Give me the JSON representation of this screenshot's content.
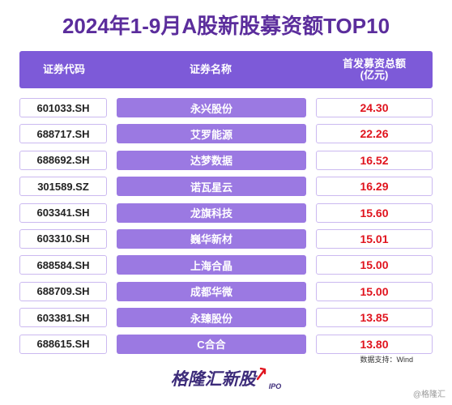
{
  "title": "2024年1-9月A股新股募资额TOP10",
  "table": {
    "headers": {
      "code": "证券代码",
      "name": "证券名称",
      "amount_line1": "首发募资总额",
      "amount_line2": "(亿元)"
    },
    "rows": [
      {
        "code": "601033.SH",
        "name": "永兴股份",
        "amount": "24.30"
      },
      {
        "code": "688717.SH",
        "name": "艾罗能源",
        "amount": "22.26"
      },
      {
        "code": "688692.SH",
        "name": "达梦数据",
        "amount": "16.52"
      },
      {
        "code": "301589.SZ",
        "name": "诺瓦星云",
        "amount": "16.29"
      },
      {
        "code": "603341.SH",
        "name": "龙旗科技",
        "amount": "15.60"
      },
      {
        "code": "603310.SH",
        "name": "巍华新材",
        "amount": "15.01"
      },
      {
        "code": "688584.SH",
        "name": "上海合晶",
        "amount": "15.00"
      },
      {
        "code": "688709.SH",
        "name": "成都华微",
        "amount": "15.00"
      },
      {
        "code": "603381.SH",
        "name": "永臻股份",
        "amount": "13.85"
      },
      {
        "code": "688615.SH",
        "name": "C合合",
        "amount": "13.80"
      }
    ]
  },
  "chart_data": {
    "type": "table",
    "title": "2024年1-9月A股新股募资额TOP10",
    "columns": [
      "证券代码",
      "证券名称",
      "首发募资总额(亿元)"
    ],
    "rows": [
      [
        "601033.SH",
        "永兴股份",
        24.3
      ],
      [
        "688717.SH",
        "艾罗能源",
        22.26
      ],
      [
        "688692.SH",
        "达梦数据",
        16.52
      ],
      [
        "301589.SZ",
        "诺瓦星云",
        16.29
      ],
      [
        "603341.SH",
        "龙旗科技",
        15.6
      ],
      [
        "603310.SH",
        "巍华新材",
        15.01
      ],
      [
        "688584.SH",
        "上海合晶",
        15.0
      ],
      [
        "688709.SH",
        "成都华微",
        15.0
      ],
      [
        "603381.SH",
        "永臻股份",
        13.85
      ],
      [
        "688615.SH",
        "C合合",
        13.8
      ]
    ]
  },
  "source": "数据支持：Wind",
  "brand": {
    "main": "格隆汇新股",
    "sub": "IPO"
  },
  "watermark": "@格隆汇",
  "colors": {
    "title": "#5b2d9c",
    "header_bg": "#7d5ad8",
    "name_bg": "#9b79e2",
    "amount_text": "#e0141e"
  }
}
